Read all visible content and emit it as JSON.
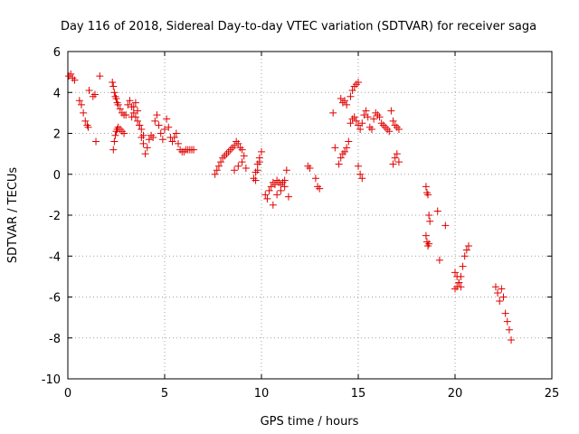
{
  "chart_data": {
    "type": "scatter",
    "title": "Day 116 of 2018, Sidereal Day-to-day VTEC variation (SDTVAR) for receiver saga",
    "xlabel": "GPS time / hours",
    "ylabel": "SDTVAR / TECUs",
    "xlim": [
      0,
      25
    ],
    "ylim": [
      -10,
      6
    ],
    "x_ticks": [
      0,
      5,
      10,
      15,
      20,
      25
    ],
    "x_tick_labels": [
      "0",
      "5",
      "10",
      "15",
      "20",
      "25"
    ],
    "y_ticks": [
      -10,
      -8,
      -6,
      -4,
      -2,
      0,
      2,
      4,
      6
    ],
    "y_tick_labels": [
      "-10",
      "-8",
      "-6",
      "-4",
      "-2",
      "0",
      "2",
      "4",
      "6"
    ],
    "grid": true,
    "marker": "+",
    "color": "#e00000",
    "x": [
      0.05,
      0.15,
      0.25,
      0.35,
      0.6,
      0.7,
      0.8,
      0.9,
      1.0,
      1.1,
      1.05,
      1.3,
      1.45,
      1.4,
      1.65,
      2.3,
      2.35,
      2.4,
      2.45,
      2.5,
      2.55,
      2.6,
      2.7,
      2.8,
      2.9,
      2.35,
      2.4,
      2.45,
      2.5,
      2.55,
      2.6,
      2.7,
      2.8,
      2.9,
      3.0,
      3.1,
      3.2,
      3.3,
      3.4,
      3.5,
      3.6,
      3.7,
      3.8,
      3.9,
      3.3,
      3.4,
      3.5,
      3.6,
      3.7,
      3.8,
      3.9,
      4.0,
      4.1,
      4.2,
      4.3,
      4.4,
      4.5,
      4.6,
      4.7,
      4.8,
      4.9,
      5.0,
      5.1,
      5.2,
      5.3,
      5.4,
      5.5,
      5.6,
      5.7,
      5.8,
      5.9,
      6.0,
      6.1,
      6.2,
      6.3,
      6.4,
      6.5,
      7.6,
      7.7,
      7.8,
      7.9,
      8.0,
      8.1,
      8.2,
      8.3,
      8.4,
      8.5,
      8.6,
      8.7,
      8.8,
      8.9,
      9.0,
      9.1,
      8.6,
      8.8,
      9.0,
      9.2,
      9.6,
      9.7,
      9.8,
      9.9,
      10.0,
      9.7,
      9.8,
      9.9,
      10.2,
      10.3,
      10.4,
      10.5,
      10.6,
      10.7,
      10.8,
      10.9,
      11.0,
      11.1,
      11.2,
      11.3,
      10.6,
      10.8,
      11.0,
      11.2,
      11.4,
      12.4,
      12.5,
      12.8,
      12.9,
      13.0,
      13.7,
      13.8,
      14.0,
      14.1,
      14.2,
      14.3,
      14.4,
      14.5,
      14.1,
      14.2,
      14.3,
      14.4,
      14.6,
      14.7,
      14.8,
      14.9,
      15.0,
      14.6,
      14.7,
      14.8,
      14.9,
      15.0,
      15.1,
      15.2,
      15.3,
      15.4,
      15.5,
      15.6,
      15.7,
      15.8,
      15.9,
      16.0,
      16.1,
      16.2,
      16.3,
      16.4,
      16.5,
      16.6,
      16.7,
      16.8,
      16.9,
      17.0,
      17.1,
      15.0,
      15.1,
      15.2,
      16.8,
      16.9,
      17.0,
      17.1,
      18.5,
      18.55,
      18.6,
      18.65,
      18.7,
      18.5,
      18.55,
      18.6,
      18.65,
      19.1,
      19.2,
      19.5,
      20.0,
      20.1,
      20.2,
      20.3,
      20.4,
      20.5,
      20.6,
      20.7,
      20.0,
      20.1,
      20.2,
      20.3,
      22.1,
      22.2,
      22.3,
      22.4,
      22.5,
      22.6,
      22.7,
      22.8,
      22.9
    ],
    "y": [
      4.8,
      4.9,
      4.7,
      4.6,
      3.6,
      3.4,
      3.0,
      2.6,
      2.4,
      4.1,
      2.3,
      3.8,
      1.6,
      3.9,
      4.8,
      4.5,
      4.3,
      4.0,
      3.8,
      3.7,
      3.5,
      3.4,
      3.2,
      3.0,
      2.9,
      1.2,
      1.6,
      1.9,
      2.1,
      2.2,
      2.3,
      2.2,
      2.1,
      2.0,
      2.9,
      3.4,
      3.6,
      3.3,
      3.0,
      2.8,
      2.6,
      2.4,
      2.2,
      1.9,
      2.8,
      3.3,
      3.5,
      3.1,
      2.4,
      1.8,
      1.5,
      1.0,
      1.3,
      1.7,
      1.9,
      1.8,
      2.6,
      2.9,
      2.4,
      2.0,
      1.7,
      2.2,
      2.7,
      2.3,
      1.8,
      1.6,
      1.8,
      2.0,
      1.5,
      1.2,
      1.1,
      1.1,
      1.2,
      1.2,
      1.2,
      1.2,
      1.2,
      0.0,
      0.2,
      0.4,
      0.6,
      0.8,
      0.9,
      1.0,
      1.1,
      1.2,
      1.3,
      1.4,
      1.6,
      1.5,
      1.3,
      1.2,
      0.9,
      0.2,
      0.4,
      0.6,
      0.3,
      -0.2,
      0.1,
      0.5,
      0.8,
      1.1,
      -0.3,
      0.2,
      0.6,
      -1.0,
      -1.2,
      -0.8,
      -0.6,
      -0.4,
      -0.5,
      -0.3,
      -0.4,
      -0.5,
      -0.4,
      -0.3,
      0.2,
      -1.5,
      -1.0,
      -0.8,
      -0.6,
      -1.1,
      0.4,
      0.3,
      -0.2,
      -0.6,
      -0.7,
      3.0,
      1.3,
      0.5,
      0.8,
      1.0,
      1.1,
      1.3,
      1.6,
      3.7,
      3.5,
      3.6,
      3.4,
      3.8,
      4.1,
      4.3,
      4.4,
      4.5,
      2.5,
      2.7,
      2.8,
      2.6,
      2.4,
      2.2,
      2.5,
      2.9,
      3.1,
      2.8,
      2.3,
      2.2,
      2.7,
      3.0,
      2.9,
      2.8,
      2.5,
      2.4,
      2.3,
      2.2,
      2.1,
      3.1,
      2.6,
      2.4,
      2.3,
      2.2,
      0.4,
      0.0,
      -0.2,
      0.5,
      0.8,
      1.0,
      0.6,
      -0.6,
      -0.9,
      -1.0,
      -2.0,
      -2.3,
      -3.0,
      -3.3,
      -3.5,
      -3.4,
      -1.8,
      -4.2,
      -2.5,
      -5.6,
      -5.5,
      -5.3,
      -5.0,
      -4.5,
      -4.0,
      -3.7,
      -3.5,
      -4.8,
      -5.0,
      -5.3,
      -5.5,
      -5.5,
      -5.8,
      -6.2,
      -5.6,
      -6.0,
      -6.8,
      -7.2,
      -7.6,
      -8.1
    ]
  }
}
